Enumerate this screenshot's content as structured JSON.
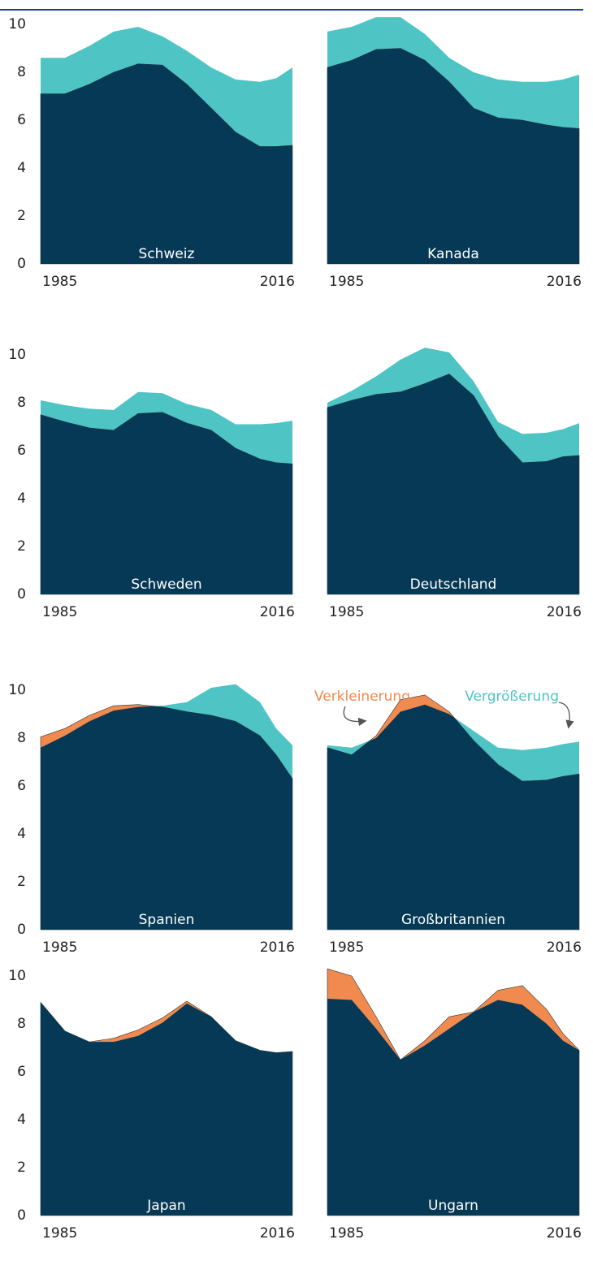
{
  "chart_data": [
    {
      "type": "area",
      "title": "Schweiz",
      "x": [
        1985,
        1988,
        1991,
        1994,
        1997,
        2000,
        2003,
        2006,
        2009,
        2012,
        2014,
        2016
      ],
      "xlim": [
        1985,
        2016
      ],
      "xticks": [
        1985,
        2016
      ],
      "ylim": [
        0,
        10
      ],
      "yticks": [
        0,
        2,
        4,
        6,
        8,
        10
      ],
      "overlap_color": "#063955",
      "series": [
        {
          "color": "#f08a4f",
          "values": [
            7.1,
            7.1,
            7.5,
            8.0,
            8.35,
            8.3,
            7.5,
            6.5,
            5.5,
            4.9,
            4.9,
            4.95
          ]
        },
        {
          "color": "#4ec4c4",
          "values": [
            8.6,
            8.6,
            9.1,
            9.7,
            9.9,
            9.5,
            8.9,
            8.2,
            7.7,
            7.6,
            7.75,
            8.2
          ]
        }
      ]
    },
    {
      "type": "area",
      "title": "Kanada",
      "x": [
        1985,
        1988,
        1991,
        1994,
        1997,
        2000,
        2003,
        2006,
        2009,
        2012,
        2014,
        2016
      ],
      "xlim": [
        1985,
        2016
      ],
      "xticks": [
        1985,
        2016
      ],
      "ylim": [
        0,
        10
      ],
      "overlap_color": "#063955",
      "series": [
        {
          "color": "#f08a4f",
          "values": [
            8.2,
            8.5,
            8.95,
            9.0,
            8.5,
            7.6,
            6.5,
            6.1,
            6.0,
            5.8,
            5.7,
            5.65
          ]
        },
        {
          "color": "#4ec4c4",
          "values": [
            9.7,
            9.9,
            10.3,
            10.3,
            9.6,
            8.6,
            8.0,
            7.7,
            7.6,
            7.6,
            7.7,
            7.9
          ]
        }
      ]
    },
    {
      "type": "area",
      "title": "Schweden",
      "x": [
        1985,
        1988,
        1991,
        1994,
        1997,
        2000,
        2003,
        2006,
        2009,
        2012,
        2014,
        2016
      ],
      "xlim": [
        1985,
        2016
      ],
      "xticks": [
        1985,
        2016
      ],
      "ylim": [
        0,
        10
      ],
      "yticks": [
        0,
        2,
        4,
        6,
        8,
        10
      ],
      "overlap_color": "#063955",
      "series": [
        {
          "color": "#f08a4f",
          "values": [
            7.5,
            7.2,
            6.95,
            6.85,
            7.55,
            7.6,
            7.15,
            6.85,
            6.1,
            5.65,
            5.5,
            5.45
          ]
        },
        {
          "color": "#4ec4c4",
          "values": [
            8.1,
            7.9,
            7.75,
            7.7,
            8.45,
            8.4,
            7.95,
            7.7,
            7.1,
            7.1,
            7.15,
            7.25
          ]
        }
      ]
    },
    {
      "type": "area",
      "title": "Deutschland",
      "x": [
        1985,
        1988,
        1991,
        1994,
        1997,
        2000,
        2003,
        2006,
        2009,
        2012,
        2014,
        2016
      ],
      "xlim": [
        1985,
        2016
      ],
      "xticks": [
        1985,
        2016
      ],
      "ylim": [
        0,
        10
      ],
      "overlap_color": "#063955",
      "series": [
        {
          "color": "#f08a4f",
          "values": [
            7.8,
            8.1,
            8.35,
            8.45,
            8.8,
            9.2,
            8.3,
            6.6,
            5.5,
            5.55,
            5.75,
            5.8
          ]
        },
        {
          "color": "#4ec4c4",
          "values": [
            8.0,
            8.5,
            9.1,
            9.8,
            10.3,
            10.1,
            8.9,
            7.2,
            6.7,
            6.75,
            6.9,
            7.15
          ]
        }
      ]
    },
    {
      "type": "area",
      "title": "Spanien",
      "x": [
        1985,
        1988,
        1991,
        1994,
        1997,
        2000,
        2003,
        2006,
        2009,
        2012,
        2014,
        2016
      ],
      "xlim": [
        1985,
        2016
      ],
      "xticks": [
        1985,
        2016
      ],
      "ylim": [
        0,
        10
      ],
      "yticks": [
        0,
        2,
        4,
        6,
        8,
        10
      ],
      "overlap_color": "#063955",
      "series": [
        {
          "color": "#f08a4f",
          "values": [
            8.05,
            8.4,
            8.95,
            9.35,
            9.4,
            9.3,
            9.1,
            8.95,
            8.7,
            8.1,
            7.3,
            6.3
          ]
        },
        {
          "color": "#4ec4c4",
          "values": [
            7.6,
            8.1,
            8.7,
            9.15,
            9.3,
            9.35,
            9.5,
            10.1,
            10.25,
            9.5,
            8.4,
            7.7
          ]
        }
      ]
    },
    {
      "type": "area",
      "title": "Großbritannien",
      "x": [
        1985,
        1988,
        1991,
        1994,
        1997,
        2000,
        2003,
        2006,
        2009,
        2012,
        2014,
        2016
      ],
      "xlim": [
        1985,
        2016
      ],
      "xticks": [
        1985,
        2016
      ],
      "ylim": [
        0,
        10
      ],
      "overlap_color": "#063955",
      "annotations": [
        {
          "text": "Verkleinerung",
          "color": "#f08a4f"
        },
        {
          "text": "Vergrößerung",
          "color": "#4ec4c4"
        }
      ],
      "series": [
        {
          "color": "#f08a4f",
          "values": [
            7.6,
            7.3,
            8.1,
            9.6,
            9.8,
            9.1,
            7.9,
            6.9,
            6.2,
            6.25,
            6.4,
            6.5
          ]
        },
        {
          "color": "#4ec4c4",
          "values": [
            7.7,
            7.6,
            8.0,
            9.1,
            9.4,
            9.0,
            8.3,
            7.6,
            7.5,
            7.6,
            7.75,
            7.85
          ]
        }
      ]
    },
    {
      "type": "area",
      "title": "Japan",
      "x": [
        1985,
        1988,
        1991,
        1994,
        1997,
        2000,
        2003,
        2006,
        2009,
        2012,
        2014,
        2016
      ],
      "xlim": [
        1985,
        2016
      ],
      "xticks": [
        1985,
        2016
      ],
      "ylim": [
        0,
        10
      ],
      "yticks": [
        0,
        2,
        4,
        6,
        8,
        10
      ],
      "overlap_color": "#063955",
      "series": [
        {
          "color": "#f08a4f",
          "values": [
            8.9,
            7.7,
            7.25,
            7.4,
            7.75,
            8.25,
            8.95,
            8.3,
            7.3,
            6.9,
            6.8,
            6.85
          ]
        },
        {
          "color": "#4ec4c4",
          "values": [
            8.9,
            7.7,
            7.25,
            7.25,
            7.5,
            8.05,
            8.85,
            8.3,
            7.3,
            6.9,
            6.8,
            6.85
          ]
        }
      ]
    },
    {
      "type": "area",
      "title": "Ungarn",
      "x": [
        1985,
        1988,
        1991,
        1994,
        1997,
        2000,
        2003,
        2006,
        2009,
        2012,
        2014,
        2016
      ],
      "xlim": [
        1985,
        2016
      ],
      "xticks": [
        1985,
        2016
      ],
      "ylim": [
        0,
        10
      ],
      "overlap_color": "#063955",
      "series": [
        {
          "color": "#f08a4f",
          "values": [
            10.3,
            10.0,
            8.3,
            6.5,
            7.3,
            8.3,
            8.5,
            9.4,
            9.6,
            8.6,
            7.6,
            6.9
          ]
        },
        {
          "color": "#4ec4c4",
          "values": [
            9.05,
            9.0,
            7.8,
            6.5,
            7.1,
            7.8,
            8.5,
            9.0,
            8.8,
            8.0,
            7.3,
            6.9
          ]
        }
      ]
    }
  ]
}
